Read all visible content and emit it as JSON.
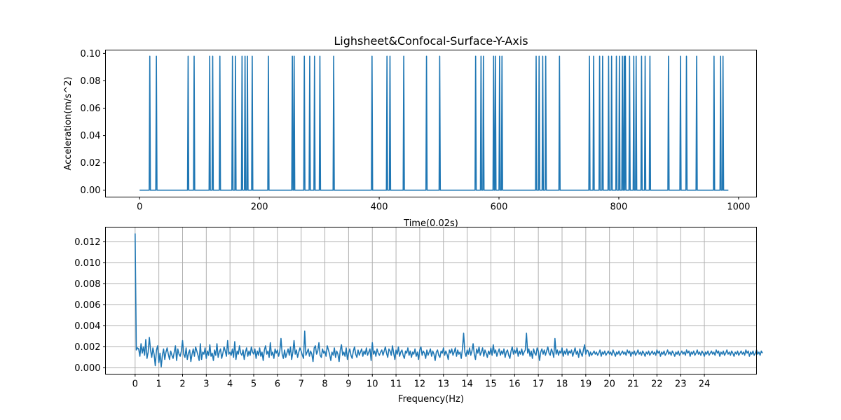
{
  "figure": {
    "title": "Lighsheet&Confocal-Surface-Y-Axis"
  },
  "colors": {
    "line": "#1f77b4",
    "grid": "#b0b0b0",
    "axes": "#000000",
    "background": "#ffffff"
  },
  "chart_data": [
    {
      "type": "line",
      "title": "Lighsheet&Confocal-Surface-Y-Axis",
      "xlabel": "Time(0.02s)",
      "ylabel": "Acceleration(m/s^2)",
      "xlim": [
        -57,
        1030
      ],
      "ylim": [
        -0.005,
        0.1025
      ],
      "xticks": [
        0,
        200,
        400,
        600,
        800,
        1000
      ],
      "yticks": [
        0.0,
        0.02,
        0.04,
        0.06,
        0.08,
        0.1
      ],
      "ytick_labels": [
        "0.00",
        "0.02",
        "0.04",
        "0.06",
        "0.08",
        "0.10"
      ],
      "grid": false,
      "series": [
        {
          "baseline": 0.0,
          "spike_value": 0.098,
          "x_end": 983,
          "spike_times": [
            17,
            28,
            81,
            91,
            117,
            122,
            134,
            155,
            160,
            171,
            176,
            180,
            188,
            215,
            255,
            258,
            275,
            284,
            292,
            301,
            324,
            388,
            413,
            418,
            441,
            479,
            501,
            561,
            570,
            574,
            591,
            594,
            601,
            605,
            662,
            667,
            673,
            678,
            701,
            751,
            758,
            768,
            773,
            783,
            788,
            796,
            801,
            806,
            809,
            811,
            818,
            825,
            829,
            838,
            844,
            852,
            883,
            903,
            913,
            930,
            959,
            970,
            974
          ]
        }
      ]
    },
    {
      "type": "line",
      "title": "",
      "xlabel": "Frequency(Hz)",
      "ylabel": "",
      "xlim": [
        -1.25,
        26.2
      ],
      "ylim": [
        -0.0006,
        0.0134
      ],
      "xticks": [
        0,
        1,
        2,
        3,
        4,
        5,
        6,
        7,
        8,
        9,
        10,
        11,
        12,
        13,
        14,
        15,
        16,
        17,
        18,
        19,
        20,
        21,
        22,
        23,
        24
      ],
      "yticks": [
        0.0,
        0.002,
        0.004,
        0.006,
        0.008,
        0.01,
        0.012
      ],
      "ytick_labels": [
        "0.000",
        "0.002",
        "0.004",
        "0.006",
        "0.008",
        "0.010",
        "0.012"
      ],
      "grid": true,
      "series": [
        {
          "x_start": 0.0,
          "x_step": 0.05,
          "values": [
            0.0128,
            0.0017,
            0.0019,
            0.0018,
            0.0011,
            0.0023,
            0.0014,
            0.002,
            0.0012,
            0.0027,
            0.0009,
            0.0015,
            0.0029,
            0.0017,
            0.001,
            0.0019,
            0.0013,
            0.0002,
            0.0017,
            0.0021,
            0.0005,
            0.0014,
            0.0001,
            0.0012,
            0.0018,
            0.0008,
            0.0015,
            0.0019,
            0.0013,
            0.0008,
            0.0016,
            0.0012,
            0.0009,
            0.0015,
            0.0021,
            0.0007,
            0.0018,
            0.0013,
            0.0011,
            0.0016,
            0.0026,
            0.0013,
            0.001,
            0.0019,
            0.0008,
            0.0014,
            0.0017,
            0.0006,
            0.0013,
            0.0018,
            0.0011,
            0.002,
            0.0016,
            0.0012,
            0.0007,
            0.0023,
            0.0008,
            0.0015,
            0.0013,
            0.0019,
            0.0009,
            0.0016,
            0.0012,
            0.0022,
            0.0011,
            0.0014,
            0.0007,
            0.0017,
            0.0012,
            0.0023,
            0.001,
            0.0015,
            0.0018,
            0.0009,
            0.0014,
            0.002,
            0.0016,
            0.0011,
            0.0026,
            0.0013,
            0.0015,
            0.0012,
            0.0018,
            0.001,
            0.0025,
            0.0008,
            0.0016,
            0.0013,
            0.0021,
            0.0014,
            0.0012,
            0.0017,
            0.0008,
            0.0015,
            0.0019,
            0.0011,
            0.0016,
            0.0012,
            0.002,
            0.0015,
            0.0013,
            0.0018,
            0.0009,
            0.0016,
            0.0012,
            0.0019,
            0.0011,
            0.0015,
            0.0007,
            0.0017,
            0.0021,
            0.0013,
            0.0016,
            0.001,
            0.0024,
            0.0012,
            0.0015,
            0.0009,
            0.0018,
            0.0014,
            0.0017,
            0.0011,
            0.0016,
            0.0028,
            0.0013,
            0.0009,
            0.0017,
            0.001,
            0.0014,
            0.0018,
            0.0012,
            0.002,
            0.0008,
            0.0015,
            0.0026,
            0.0013,
            0.0017,
            0.001,
            0.0015,
            0.0019,
            0.0016,
            0.0012,
            0.0009,
            0.0035,
            0.0012,
            0.0015,
            0.0018,
            0.0011,
            0.0016,
            0.0013,
            0.0006,
            0.0019,
            0.0021,
            0.0013,
            0.0016,
            0.0024,
            0.0012,
            0.001,
            0.0018,
            0.0014,
            0.0016,
            0.0011,
            0.0021,
            0.0017,
            0.0013,
            0.0007,
            0.0015,
            0.0012,
            0.0019,
            0.001,
            0.0016,
            0.0013,
            0.0006,
            0.0017,
            0.0022,
            0.0012,
            0.0015,
            0.0011,
            0.0019,
            0.0008,
            0.0014,
            0.0018,
            0.0012,
            0.0009,
            0.0016,
            0.002,
            0.0013,
            0.001,
            0.0017,
            0.0012,
            0.0015,
            0.0018,
            0.0011,
            0.0016,
            0.0013,
            0.0019,
            0.0012,
            0.0015,
            0.0018,
            0.0007,
            0.0024,
            0.0013,
            0.0016,
            0.0011,
            0.0018,
            0.0014,
            0.0012,
            0.0015,
            0.0017,
            0.0012,
            0.0016,
            0.002,
            0.0014,
            0.001,
            0.0018,
            0.0016,
            0.0012,
            0.0021,
            0.0014,
            0.0008,
            0.0017,
            0.0013,
            0.002,
            0.0011,
            0.0015,
            0.0017,
            0.0012,
            0.0009,
            0.0016,
            0.0014,
            0.0019,
            0.0012,
            0.0016,
            0.001,
            0.0015,
            0.0013,
            0.0018,
            0.0011,
            0.0015,
            0.0008,
            0.0017,
            0.002,
            0.0012,
            0.0016,
            0.0014,
            0.0009,
            0.0017,
            0.0012,
            0.0015,
            0.0018,
            0.0011,
            0.0016,
            0.0013,
            0.0007,
            0.0015,
            0.0017,
            0.0012,
            0.001,
            0.0016,
            0.0014,
            0.0019,
            0.0012,
            0.0016,
            0.0013,
            0.0008,
            0.0017,
            0.0014,
            0.0018,
            0.0012,
            0.0015,
            0.0019,
            0.0011,
            0.0017,
            0.0013,
            0.0015,
            0.0009,
            0.0018,
            0.0033,
            0.0015,
            0.0011,
            0.0017,
            0.0013,
            0.0019,
            0.0012,
            0.0016,
            0.0023,
            0.0013,
            0.0008,
            0.0018,
            0.0014,
            0.002,
            0.0012,
            0.0015,
            0.0019,
            0.0011,
            0.0017,
            0.0014,
            0.001,
            0.0016,
            0.0013,
            0.0019,
            0.0012,
            0.0022,
            0.0014,
            0.0017,
            0.0011,
            0.0015,
            0.0018,
            0.0012,
            0.0016,
            0.0013,
            0.0018,
            0.001,
            0.0015,
            0.0017,
            0.0012,
            0.0009,
            0.0016,
            0.002,
            0.0013,
            0.0017,
            0.0014,
            0.0019,
            0.0011,
            0.0016,
            0.0013,
            0.0018,
            0.0012,
            0.0015,
            0.0017,
            0.0033,
            0.0014,
            0.0018,
            0.0011,
            0.0016,
            0.0009,
            0.0018,
            0.0014,
            0.0012,
            0.0019,
            0.0016,
            0.0007,
            0.0015,
            0.0018,
            0.0013,
            0.0017,
            0.0012,
            0.0016,
            0.002,
            0.0014,
            0.0012,
            0.0018,
            0.0015,
            0.001,
            0.0028,
            0.0013,
            0.0017,
            0.0012,
            0.0016,
            0.0014,
            0.0019,
            0.0011,
            0.0016,
            0.0013,
            0.0018,
            0.0012,
            0.0016,
            0.0014,
            0.0017,
            0.0011,
            0.0015,
            0.0019,
            0.0013,
            0.0016,
            0.001,
            0.0018,
            0.0014,
            0.0011,
            0.0017,
            0.0022,
            0.0013,
            0.0017,
            0.0016,
            0.0011,
            0.0015,
            0.0012,
            0.0014,
            0.0016,
            0.0013,
            0.0015,
            0.0012,
            0.0014,
            0.0017,
            0.0011,
            0.0015,
            0.0013,
            0.0016,
            0.0012,
            0.0014,
            0.0016,
            0.0013,
            0.0015,
            0.0012,
            0.0017,
            0.0014,
            0.0011,
            0.0015,
            0.0013,
            0.0016,
            0.0012,
            0.0014,
            0.0016,
            0.0013,
            0.0015,
            0.0012,
            0.0017,
            0.0014,
            0.0016,
            0.0011,
            0.0015,
            0.0013,
            0.0016,
            0.0012,
            0.0014,
            0.0017,
            0.0013,
            0.0015,
            0.0012,
            0.0016,
            0.0014,
            0.0011,
            0.0015,
            0.0013,
            0.0016,
            0.0012,
            0.0014,
            0.0016,
            0.0013,
            0.0015,
            0.0012,
            0.0017,
            0.0014,
            0.0016,
            0.0011,
            0.0015,
            0.0013,
            0.0016,
            0.0012,
            0.0014,
            0.0017,
            0.0013,
            0.0015,
            0.0012,
            0.0016,
            0.0014,
            0.0011,
            0.0015,
            0.0013,
            0.0016,
            0.0012,
            0.0014,
            0.0016,
            0.0013,
            0.0015,
            0.0012,
            0.0017,
            0.0014,
            0.0016,
            0.0011,
            0.0015,
            0.0013,
            0.0016,
            0.0012,
            0.0014,
            0.0017,
            0.0013,
            0.0015,
            0.0012,
            0.0016,
            0.0014,
            0.0011,
            0.0015,
            0.0013,
            0.0016,
            0.0012,
            0.0014,
            0.0016,
            0.0013,
            0.0015,
            0.0012,
            0.0017,
            0.0014,
            0.0016,
            0.0011,
            0.0015,
            0.0013,
            0.0016,
            0.0012,
            0.0014,
            0.0017,
            0.0013,
            0.0015,
            0.0012,
            0.0016,
            0.0014,
            0.0011,
            0.0015,
            0.0013,
            0.0016,
            0.0012,
            0.0014,
            0.0016,
            0.0013,
            0.0015,
            0.0012,
            0.0017,
            0.0014,
            0.0016,
            0.0011,
            0.0015,
            0.0013,
            0.0016,
            0.0012,
            0.0014,
            0.0017,
            0.0013,
            0.0015,
            0.0012,
            0.0016,
            0.0014
          ]
        }
      ]
    }
  ]
}
